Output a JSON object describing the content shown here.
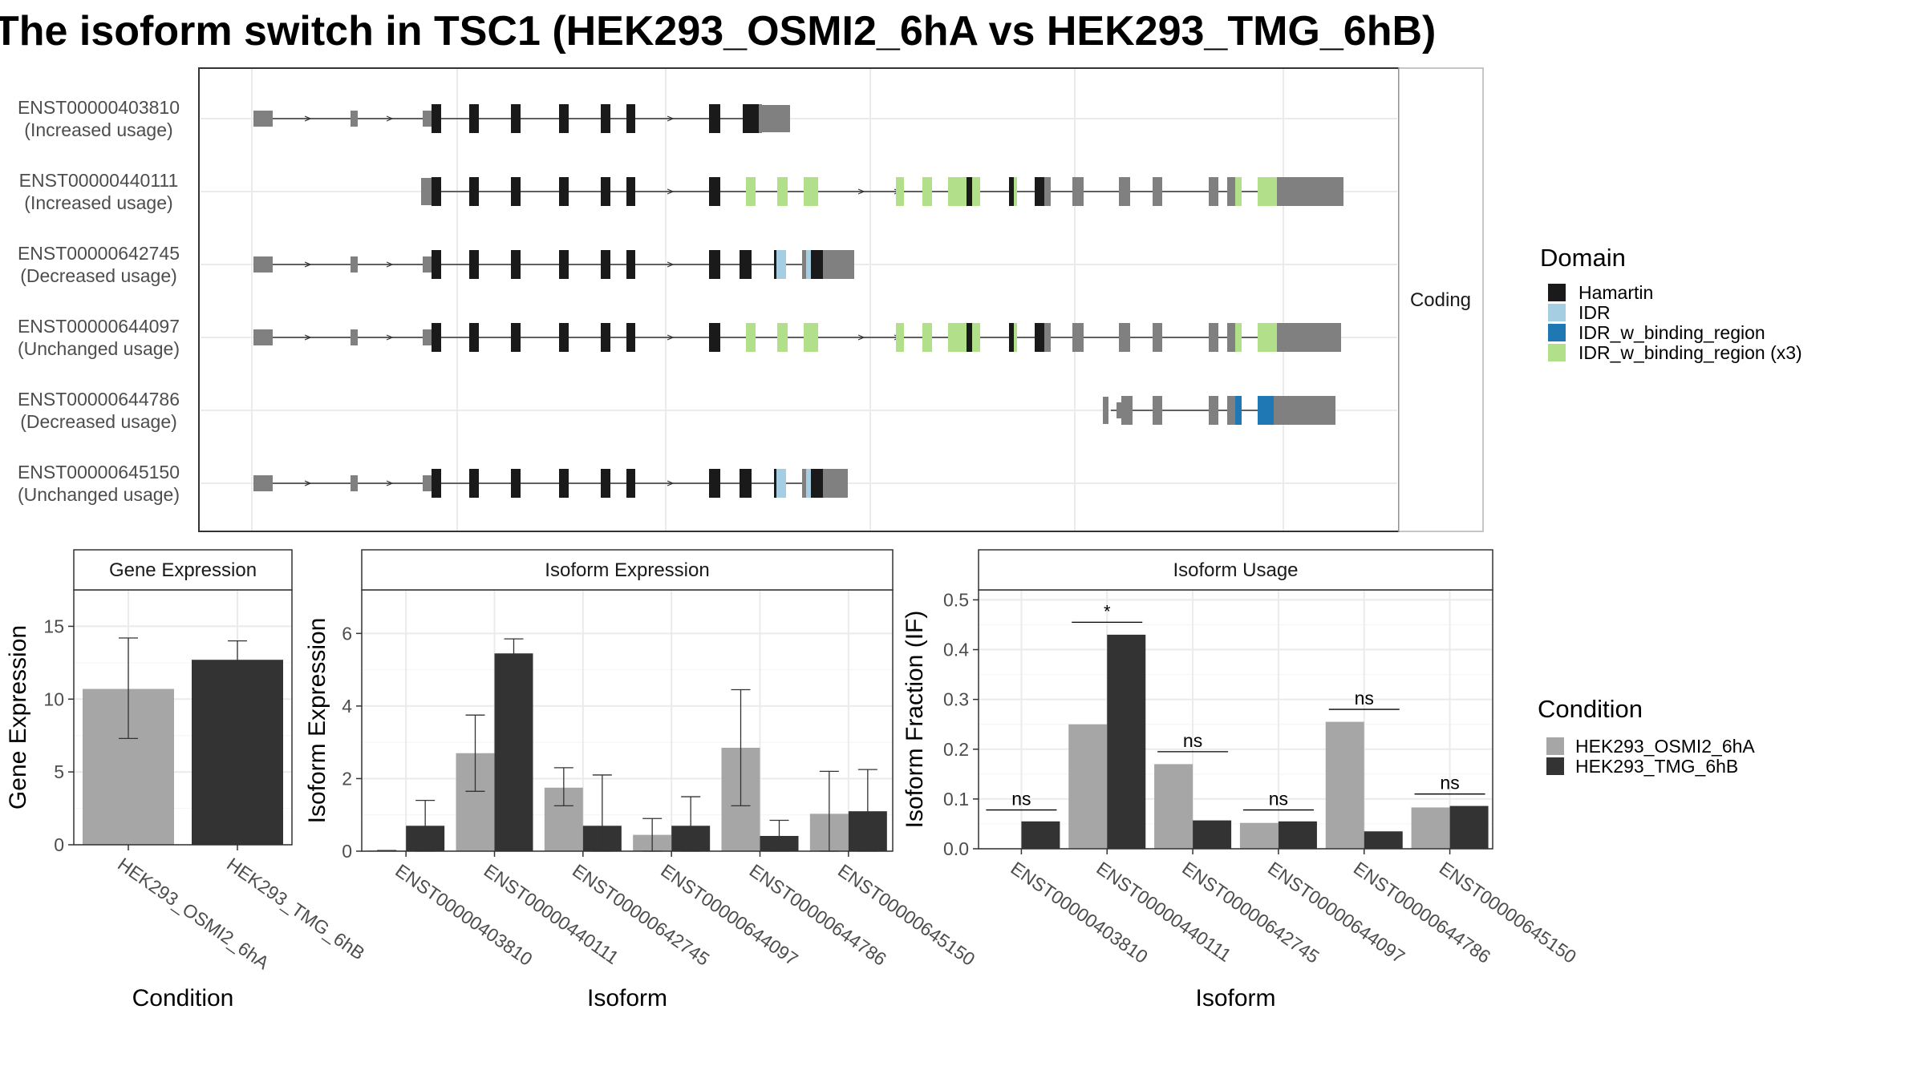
{
  "title": "The isoform switch in TSC1 (HEK293_OSMI2_6hA vs HEK293_TMG_6hB)",
  "colors": {
    "Hamartin": "#1a1a1a",
    "IDR": "#a6cee3",
    "IDR_w_binding_region": "#1f78b4",
    "IDR_w_binding_region (x3)": "#b2df8a",
    "noncoding": "#808080",
    "cond_a": "#a6a6a6",
    "cond_b": "#333333"
  },
  "structure": {
    "strip_label": "Coding",
    "transcripts": [
      {
        "id": "ENST00000403810",
        "usage": "(Increased usage)"
      },
      {
        "id": "ENST00000440111",
        "usage": "(Increased usage)"
      },
      {
        "id": "ENST00000642745",
        "usage": "(Decreased usage)"
      },
      {
        "id": "ENST00000644097",
        "usage": "(Unchanged usage)"
      },
      {
        "id": "ENST00000644786",
        "usage": "(Decreased usage)"
      },
      {
        "id": "ENST00000645150",
        "usage": "(Unchanged usage)"
      }
    ]
  },
  "legend_domain": {
    "title": "Domain",
    "items": [
      {
        "label": "Hamartin",
        "color": "#1a1a1a"
      },
      {
        "label": "IDR",
        "color": "#a6cee3"
      },
      {
        "label": "IDR_w_binding_region",
        "color": "#1f78b4"
      },
      {
        "label": "IDR_w_binding_region (x3)",
        "color": "#b2df8a"
      }
    ]
  },
  "legend_condition": {
    "title": "Condition",
    "items": [
      {
        "label": "HEK293_OSMI2_6hA",
        "color": "#a6a6a6"
      },
      {
        "label": "HEK293_TMG_6hB",
        "color": "#333333"
      }
    ]
  },
  "chart_data": [
    {
      "type": "bar",
      "title": "Gene Expression",
      "xlabel": "Condition",
      "ylabel": "Gene Expression",
      "ylim": [
        0,
        17.5
      ],
      "yticks": [
        0,
        5,
        10,
        15
      ],
      "categories": [
        "HEK293_OSMI2_6hA",
        "HEK293_TMG_6hB"
      ],
      "values": [
        10.7,
        12.7
      ],
      "err_low": [
        7.3,
        11.5
      ],
      "err_high": [
        14.2,
        14.0
      ]
    },
    {
      "type": "bar",
      "title": "Isoform Expression",
      "xlabel": "Isoform",
      "ylabel": "Isoform Expression",
      "ylim": [
        0,
        7.2
      ],
      "yticks": [
        0,
        2,
        4,
        6
      ],
      "categories": [
        "ENST00000403810",
        "ENST00000440111",
        "ENST00000642745",
        "ENST00000644097",
        "ENST00000644786",
        "ENST00000645150"
      ],
      "series": [
        {
          "name": "HEK293_OSMI2_6hA",
          "values": [
            0.02,
            2.7,
            1.75,
            0.45,
            2.85,
            1.03
          ],
          "err_low": [
            0.02,
            1.65,
            1.25,
            0.0,
            1.25,
            0.0
          ],
          "err_high": [
            0.02,
            3.75,
            2.3,
            0.9,
            4.45,
            2.2
          ]
        },
        {
          "name": "HEK293_TMG_6hB",
          "values": [
            0.7,
            5.45,
            0.7,
            0.7,
            0.42,
            1.1
          ],
          "err_low": [
            0.0,
            5.0,
            0.0,
            0.0,
            0.0,
            0.0
          ],
          "err_high": [
            1.4,
            5.85,
            2.1,
            1.5,
            0.85,
            2.25
          ]
        }
      ]
    },
    {
      "type": "bar",
      "title": "Isoform Usage",
      "xlabel": "Isoform",
      "ylabel": "Isoform Fraction (IF)",
      "ylim": [
        0,
        0.52
      ],
      "yticks": [
        "0.0",
        "0.1",
        "0.2",
        "0.3",
        "0.4",
        "0.5"
      ],
      "categories": [
        "ENST00000403810",
        "ENST00000440111",
        "ENST00000642745",
        "ENST00000644097",
        "ENST00000644786",
        "ENST00000645150"
      ],
      "series": [
        {
          "name": "HEK293_OSMI2_6hA",
          "values": [
            0.0,
            0.25,
            0.17,
            0.052,
            0.255,
            0.083
          ]
        },
        {
          "name": "HEK293_TMG_6hB",
          "values": [
            0.055,
            0.43,
            0.057,
            0.055,
            0.035,
            0.086
          ]
        }
      ],
      "significance": [
        "ns",
        "*",
        "ns",
        "ns",
        "ns",
        "ns"
      ],
      "sig_y": [
        0.078,
        0.455,
        0.195,
        0.078,
        0.28,
        0.11
      ]
    }
  ]
}
